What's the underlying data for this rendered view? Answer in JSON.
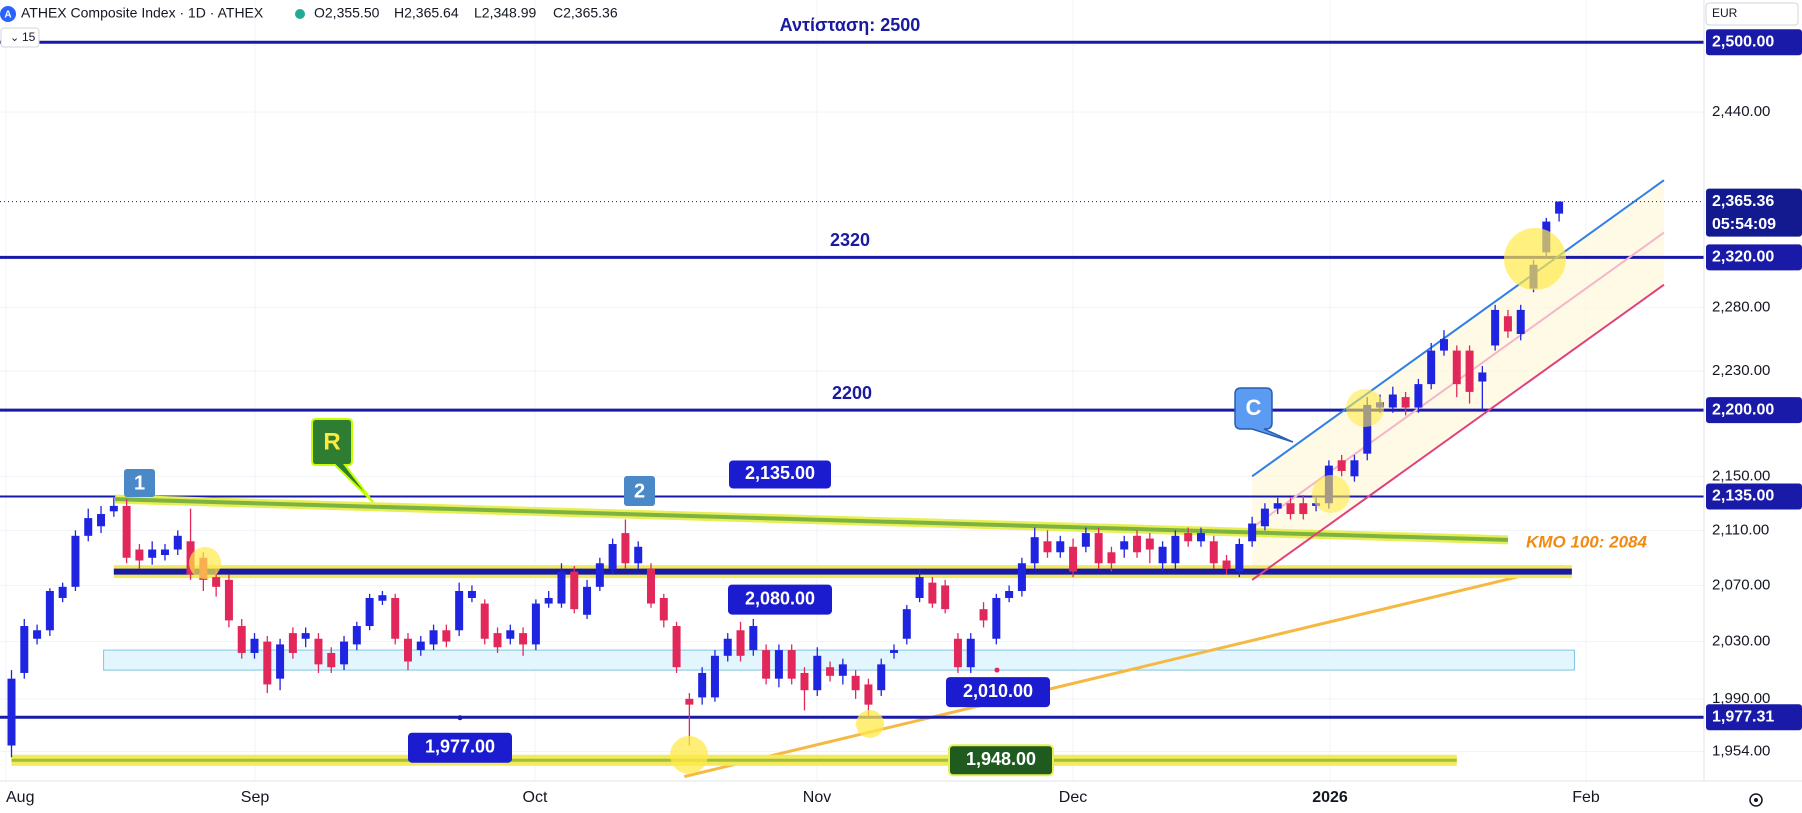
{
  "chart_data": {
    "type": "candlestick",
    "title": "ATHEX Composite Index · 1D · ATHEX",
    "ohlc_legend": [
      "O2,355.50",
      "H2,365.64",
      "L2,348.99",
      "C2,365.36"
    ],
    "interval_badge": "15",
    "currency": "EUR",
    "log_scale": true,
    "grid": true,
    "up_color": "#1f24e0",
    "down_color": "#e2285a",
    "ylim": [
      1934,
      2537
    ],
    "yticks": [
      {
        "value": 2440,
        "label": "2,440.00"
      },
      {
        "value": 2280,
        "label": "2,280.00"
      },
      {
        "value": 2230,
        "label": "2,230.00"
      },
      {
        "value": 2150,
        "label": "2,150.00"
      },
      {
        "value": 2110,
        "label": "2,110.00"
      },
      {
        "value": 2070,
        "label": "2,070.00"
      },
      {
        "value": 2030,
        "label": "2,030.00"
      },
      {
        "value": 1990,
        "label": "1,990.00"
      },
      {
        "value": 1954,
        "label": "1,954.00"
      }
    ],
    "x_labels": [
      "Aug",
      "Sep",
      "Oct",
      "Nov",
      "Dec",
      "2026",
      "Feb"
    ],
    "candles": [
      [
        1958,
        2010,
        1950,
        2004
      ],
      [
        2008,
        2046,
        2004,
        2041
      ],
      [
        2032,
        2042,
        2028,
        2038
      ],
      [
        2038,
        2068,
        2034,
        2066
      ],
      [
        2061,
        2072,
        2058,
        2069
      ],
      [
        2069,
        2110,
        2066,
        2106
      ],
      [
        2106,
        2126,
        2102,
        2119
      ],
      [
        2113,
        2128,
        2108,
        2122
      ],
      [
        2124,
        2134,
        2120,
        2128
      ],
      [
        2128,
        2133,
        2086,
        2090
      ],
      [
        2096,
        2100,
        2082,
        2088
      ],
      [
        2090,
        2102,
        2085,
        2096
      ],
      [
        2092,
        2100,
        2088,
        2096
      ],
      [
        2096,
        2110,
        2092,
        2106
      ],
      [
        2102,
        2126,
        2074,
        2078
      ],
      [
        2090,
        2094,
        2066,
        2074
      ],
      [
        2076,
        2082,
        2062,
        2069
      ],
      [
        2074,
        2078,
        2040,
        2045
      ],
      [
        2041,
        2046,
        2018,
        2022
      ],
      [
        2022,
        2036,
        2018,
        2032
      ],
      [
        2030,
        2034,
        1994,
        2000
      ],
      [
        2004,
        2032,
        1996,
        2028
      ],
      [
        2036,
        2040,
        2018,
        2022
      ],
      [
        2032,
        2040,
        2026,
        2036
      ],
      [
        2032,
        2036,
        2008,
        2014
      ],
      [
        2022,
        2026,
        2008,
        2012
      ],
      [
        2014,
        2034,
        2010,
        2030
      ],
      [
        2028,
        2044,
        2024,
        2041
      ],
      [
        2041,
        2064,
        2038,
        2061
      ],
      [
        2059,
        2066,
        2056,
        2063
      ],
      [
        2061,
        2064,
        2028,
        2032
      ],
      [
        2032,
        2036,
        2010,
        2016
      ],
      [
        2024,
        2034,
        2020,
        2030
      ],
      [
        2028,
        2042,
        2024,
        2038
      ],
      [
        2038,
        2042,
        2026,
        2030
      ],
      [
        2038,
        2072,
        2034,
        2066
      ],
      [
        2061,
        2070,
        2058,
        2066
      ],
      [
        2057,
        2060,
        2028,
        2032
      ],
      [
        2036,
        2040,
        2022,
        2026
      ],
      [
        2032,
        2042,
        2028,
        2038
      ],
      [
        2036,
        2040,
        2020,
        2028
      ],
      [
        2028,
        2060,
        2024,
        2057
      ],
      [
        2057,
        2066,
        2054,
        2061
      ],
      [
        2057,
        2086,
        2054,
        2080
      ],
      [
        2080,
        2084,
        2050,
        2053
      ],
      [
        2049,
        2074,
        2046,
        2069
      ],
      [
        2069,
        2090,
        2066,
        2086
      ],
      [
        2082,
        2104,
        2078,
        2100
      ],
      [
        2108,
        2118,
        2082,
        2086
      ],
      [
        2086,
        2102,
        2082,
        2098
      ],
      [
        2082,
        2086,
        2054,
        2057
      ],
      [
        2061,
        2064,
        2040,
        2045
      ],
      [
        2041,
        2044,
        2008,
        2012
      ],
      [
        1990,
        1994,
        1958,
        1986
      ],
      [
        1991,
        2012,
        1986,
        2008
      ],
      [
        1991,
        2024,
        1988,
        2020
      ],
      [
        2020,
        2036,
        2016,
        2032
      ],
      [
        2038,
        2044,
        2016,
        2020
      ],
      [
        2024,
        2046,
        2020,
        2041
      ],
      [
        2024,
        2028,
        2000,
        2004
      ],
      [
        2004,
        2028,
        1998,
        2024
      ],
      [
        2024,
        2028,
        2000,
        2004
      ],
      [
        2008,
        2012,
        1982,
        1996
      ],
      [
        1996,
        2026,
        1992,
        2020
      ],
      [
        2012,
        2016,
        2002,
        2006
      ],
      [
        2006,
        2018,
        2000,
        2014
      ],
      [
        2006,
        2010,
        1990,
        1996
      ],
      [
        2000,
        2004,
        1978,
        1986
      ],
      [
        1996,
        2018,
        1992,
        2014
      ],
      [
        2022,
        2028,
        2018,
        2024
      ],
      [
        2032,
        2056,
        2028,
        2053
      ],
      [
        2061,
        2082,
        2058,
        2076
      ],
      [
        2072,
        2076,
        2054,
        2057
      ],
      [
        2070,
        2074,
        2050,
        2053
      ],
      [
        2032,
        2036,
        2008,
        2012
      ],
      [
        2012,
        2036,
        2008,
        2032
      ],
      [
        2053,
        2058,
        2040,
        2045
      ],
      [
        2032,
        2064,
        2028,
        2061
      ],
      [
        2061,
        2070,
        2058,
        2066
      ],
      [
        2066,
        2090,
        2062,
        2086
      ],
      [
        2086,
        2112,
        2082,
        2105
      ],
      [
        2102,
        2110,
        2090,
        2094
      ],
      [
        2094,
        2106,
        2090,
        2102
      ],
      [
        2098,
        2104,
        2076,
        2080
      ],
      [
        2098,
        2112,
        2094,
        2108
      ],
      [
        2108,
        2112,
        2082,
        2086
      ],
      [
        2094,
        2098,
        2080,
        2086
      ],
      [
        2096,
        2106,
        2090,
        2102
      ],
      [
        2106,
        2110,
        2090,
        2094
      ],
      [
        2104,
        2108,
        2086,
        2096
      ],
      [
        2086,
        2102,
        2080,
        2098
      ],
      [
        2086,
        2110,
        2082,
        2106
      ],
      [
        2108,
        2112,
        2098,
        2102
      ],
      [
        2102,
        2112,
        2098,
        2108
      ],
      [
        2102,
        2106,
        2082,
        2086
      ],
      [
        2088,
        2092,
        2078,
        2082
      ],
      [
        2080,
        2104,
        2076,
        2100
      ],
      [
        2102,
        2120,
        2098,
        2115
      ],
      [
        2113,
        2130,
        2110,
        2126
      ],
      [
        2126,
        2134,
        2122,
        2130
      ],
      [
        2130,
        2134,
        2118,
        2122
      ],
      [
        2130,
        2136,
        2118,
        2122
      ],
      [
        2128,
        2134,
        2124,
        2130
      ],
      [
        2130,
        2162,
        2126,
        2158
      ],
      [
        2162,
        2166,
        2150,
        2154
      ],
      [
        2150,
        2166,
        2146,
        2162
      ],
      [
        2167,
        2210,
        2162,
        2204
      ],
      [
        2202,
        2212,
        2198,
        2206
      ],
      [
        2202,
        2218,
        2198,
        2212
      ],
      [
        2210,
        2214,
        2196,
        2202
      ],
      [
        2202,
        2224,
        2198,
        2220
      ],
      [
        2220,
        2252,
        2216,
        2246
      ],
      [
        2246,
        2262,
        2242,
        2255
      ],
      [
        2246,
        2250,
        2210,
        2220
      ],
      [
        2246,
        2250,
        2205,
        2214
      ],
      [
        2222,
        2234,
        2200,
        2229
      ],
      [
        2250,
        2282,
        2246,
        2278
      ],
      [
        2273,
        2278,
        2256,
        2261
      ],
      [
        2259,
        2282,
        2254,
        2278
      ],
      [
        2295,
        2318,
        2292,
        2314
      ],
      [
        2324,
        2352,
        2320,
        2349
      ],
      [
        2355.5,
        2365.64,
        2348.99,
        2365.36
      ]
    ],
    "last_price": {
      "value": 2365.36,
      "label": "2,365.36",
      "countdown": "05:54:09"
    },
    "levels": [
      {
        "value": 2500,
        "text": "Αντίσταση: 2500",
        "axis_label": "2,500.00"
      },
      {
        "value": 2320,
        "text": "2320",
        "axis_label": "2,320.00"
      },
      {
        "value": 2200,
        "text": "2200",
        "axis_label": "2,200.00"
      },
      {
        "value": 2135,
        "box_label": "2,135.00",
        "axis_label": "2,135.00"
      },
      {
        "value": 1977.31,
        "axis_label": "1,977.31"
      }
    ],
    "bands": [
      {
        "value": 2080,
        "label": "2,080.00",
        "from": 8,
        "to": 122
      },
      {
        "value": 1948,
        "label": "1,948.00",
        "from": 0,
        "to": 113
      }
    ],
    "annotations": [
      {
        "value": 1977,
        "label": "1,977.00"
      },
      {
        "value": 2010,
        "label": "2,010.00"
      }
    ],
    "zone": {
      "range": [
        2024,
        2010
      ],
      "from": 7.2,
      "to": 122.2
    },
    "trendlines": [
      {
        "from": [
          8.1,
          2133
        ],
        "to": [
          117,
          2103
        ],
        "color": "#7cb342"
      },
      {
        "from": [
          97,
          2150
        ],
        "to": [
          129.2,
          2383
        ],
        "color": "#2f7fe8"
      },
      {
        "from": [
          97,
          2112
        ],
        "to": [
          129.2,
          2340
        ],
        "color": "#f4b6c8"
      },
      {
        "from": [
          97,
          2074
        ],
        "to": [
          129.2,
          2298
        ],
        "color": "#e0407a"
      }
    ],
    "moving_average": {
      "label": "ΚΜΟ 100: 2084",
      "from": [
        52.6,
        1937
      ],
      "to": [
        121.3,
        2084
      ],
      "color": "#f5b942"
    },
    "callouts": [
      "1",
      "2",
      "R",
      "C"
    ]
  }
}
